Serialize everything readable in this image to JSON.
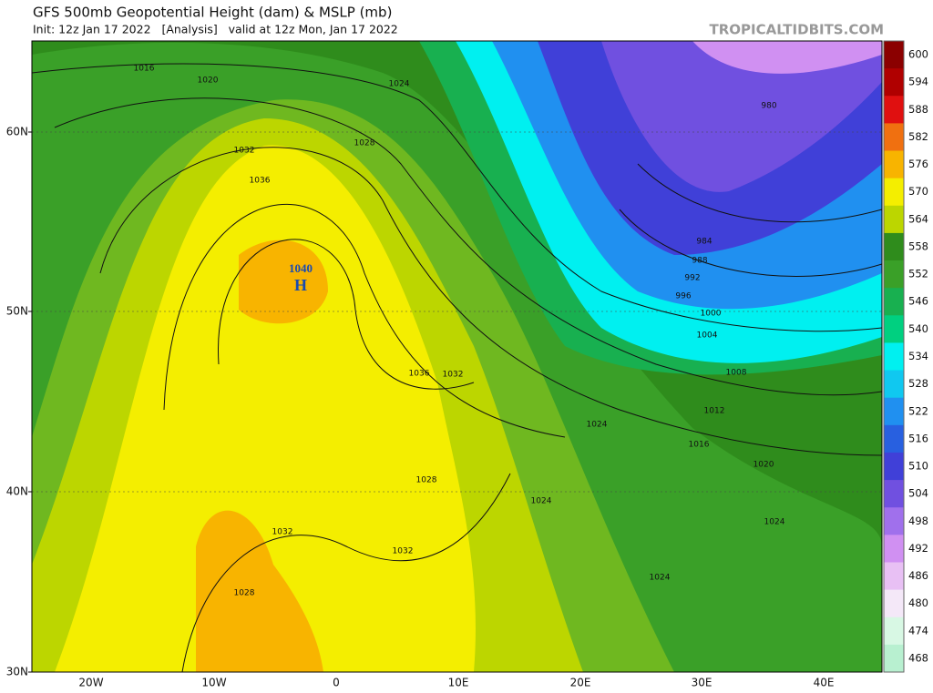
{
  "header": {
    "title": "GFS 500mb Geopotential Height (dam) & MSLP (mb)",
    "subtitle": "Init: 12z Jan 17 2022   [Analysis]   valid at 12z Mon, Jan 17 2022",
    "source": "TROPICALTIDBITS.COM"
  },
  "map": {
    "lat_labels": [
      "60N",
      "50N",
      "40N",
      "30N"
    ],
    "lon_labels": [
      "20W",
      "10W",
      "0",
      "10E",
      "20E",
      "30E",
      "40E"
    ],
    "isobar_labels": [
      "1016",
      "1020",
      "1024",
      "1028",
      "1032",
      "1036",
      "980",
      "984",
      "988",
      "992",
      "996",
      "1000",
      "1004",
      "1008",
      "1012",
      "1016",
      "1020",
      "1024",
      "1036",
      "1032",
      "1028",
      "1024",
      "1032",
      "1032",
      "1024",
      "1028",
      "1024"
    ],
    "high": {
      "pressure": "1040",
      "symbol": "H"
    }
  },
  "colorbar": {
    "levels": [
      600,
      594,
      588,
      582,
      576,
      570,
      564,
      558,
      552,
      546,
      540,
      534,
      528,
      522,
      516,
      510,
      504,
      498,
      492,
      486,
      480,
      474,
      468
    ],
    "colors": [
      "#8b0000",
      "#b00000",
      "#e01010",
      "#f07010",
      "#f8b400",
      "#f4ee00",
      "#bcd600",
      "#2f8c1c",
      "#3aa028",
      "#18b050",
      "#00d080",
      "#00f0f0",
      "#10c8f0",
      "#2090f0",
      "#2860e0",
      "#4040d8",
      "#7050e0",
      "#a070ec",
      "#d090f2",
      "#e8c0f4",
      "#f4e8f8",
      "#d8f8e4",
      "#b8f0d0"
    ]
  }
}
